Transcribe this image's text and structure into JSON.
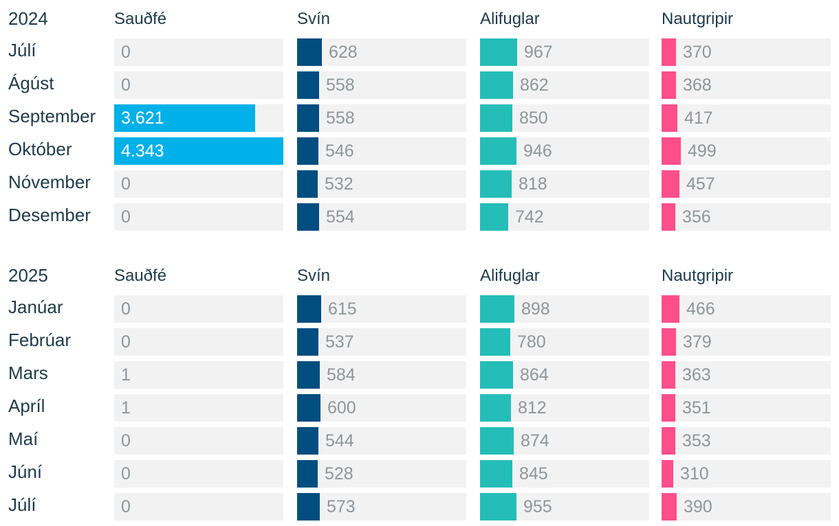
{
  "colors": {
    "sheep": "#00b0e8",
    "pigs": "#004d80",
    "poultry": "#25bdb8",
    "cattle": "#ff4f8a",
    "cell_background": "#f2f2f2",
    "value_text": "#8f9599"
  },
  "chart_data": [
    {
      "type": "bar",
      "year": "2024",
      "categories": [
        "Júlí",
        "Ágúst",
        "September",
        "Október",
        "Nóvember",
        "Desember"
      ],
      "value_labels": {
        "sheep": [
          "0",
          "0",
          "3.621",
          "4.343",
          "0",
          "0"
        ],
        "pigs": [
          "628",
          "558",
          "558",
          "546",
          "532",
          "554"
        ],
        "poultry": [
          "967",
          "862",
          "850",
          "946",
          "818",
          "742"
        ],
        "cattle": [
          "370",
          "368",
          "417",
          "499",
          "457",
          "356"
        ]
      },
      "series": [
        {
          "key": "sheep",
          "name": "Sauðfé",
          "values": [
            0,
            0,
            3621,
            4343,
            0,
            0
          ]
        },
        {
          "key": "pigs",
          "name": "Svín",
          "values": [
            628,
            558,
            558,
            546,
            532,
            554
          ]
        },
        {
          "key": "poultry",
          "name": "Alifuglar",
          "values": [
            967,
            862,
            850,
            946,
            818,
            742
          ]
        },
        {
          "key": "cattle",
          "name": "Nautgripir",
          "values": [
            370,
            368,
            417,
            499,
            457,
            356
          ]
        }
      ]
    },
    {
      "type": "bar",
      "year": "2025",
      "categories": [
        "Janúar",
        "Febrúar",
        "Mars",
        "Apríl",
        "Maí",
        "Júní",
        "Júlí"
      ],
      "value_labels": {
        "sheep": [
          "0",
          "0",
          "1",
          "1",
          "0",
          "0",
          "0"
        ],
        "pigs": [
          "615",
          "537",
          "584",
          "600",
          "544",
          "528",
          "573"
        ],
        "poultry": [
          "898",
          "780",
          "864",
          "812",
          "874",
          "845",
          "955"
        ],
        "cattle": [
          "466",
          "379",
          "363",
          "351",
          "353",
          "310",
          "390"
        ]
      },
      "series": [
        {
          "key": "sheep",
          "name": "Sauðfé",
          "values": [
            0,
            0,
            1,
            1,
            0,
            0,
            0
          ]
        },
        {
          "key": "pigs",
          "name": "Svín",
          "values": [
            615,
            537,
            584,
            600,
            544,
            528,
            573
          ]
        },
        {
          "key": "poultry",
          "name": "Alifuglar",
          "values": [
            898,
            780,
            864,
            812,
            874,
            845,
            955
          ]
        },
        {
          "key": "cattle",
          "name": "Nautgripir",
          "values": [
            466,
            379,
            363,
            351,
            353,
            310,
            390
          ]
        }
      ]
    }
  ]
}
